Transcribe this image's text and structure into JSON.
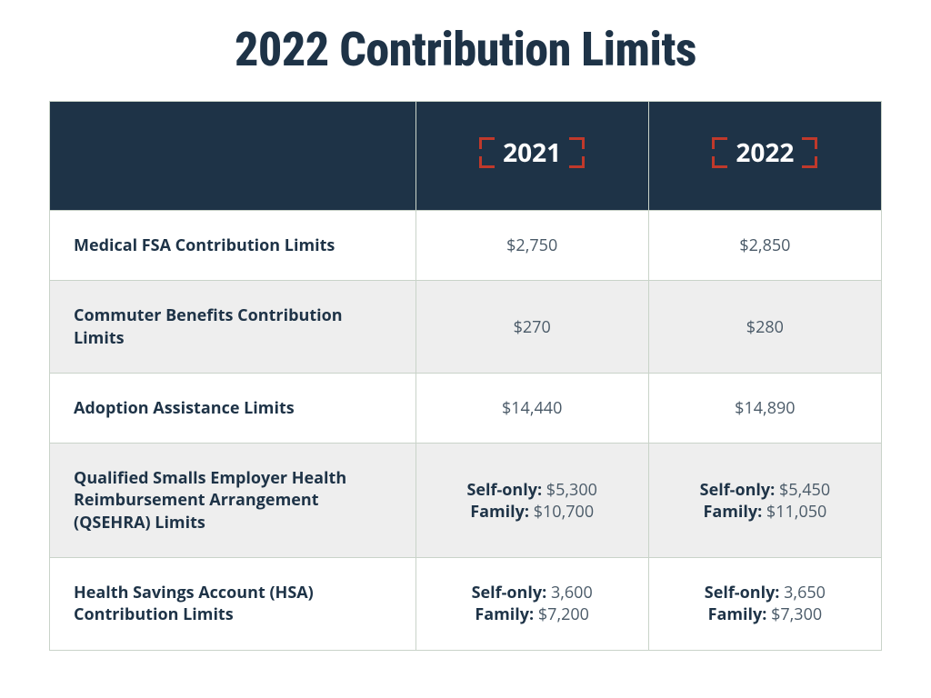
{
  "title": "2022 Contribution Limits",
  "colors": {
    "header_bg": "#1e3347",
    "header_text": "#ffffff",
    "bracket": "#c0392b",
    "row_alt_bg": "#eeeeee",
    "border": "#c9d3c9",
    "text_dark": "#1e3347",
    "text_muted": "#4a5a68",
    "page_bg": "#ffffff"
  },
  "typography": {
    "title_fontsize_pt": 39,
    "header_year_fontsize_pt": 21,
    "cell_fontsize_pt": 14,
    "title_weight": 800,
    "label_weight": 700
  },
  "columns": [
    "",
    "2021",
    "2022"
  ],
  "column_widths_pct": [
    44,
    28,
    28
  ],
  "rows": [
    {
      "label": "Medical FSA Contribution Limits",
      "y2021": "$2,750",
      "y2022": "$2,850"
    },
    {
      "label": "Commuter Benefits Contribution Limits",
      "y2021": "$270",
      "y2022": "$280"
    },
    {
      "label": "Adoption Assistance Limits",
      "y2021": "$14,440",
      "y2022": "$14,890"
    },
    {
      "label": "Qualified Smalls Employer Health Reimbursement Arrangement (QSEHRA) Limits",
      "y2021_self_label": "Self-only:",
      "y2021_self": "$5,300",
      "y2021_fam_label": "Family:",
      "y2021_fam": "$10,700",
      "y2022_self_label": "Self-only:",
      "y2022_self": "$5,450",
      "y2022_fam_label": "Family:",
      "y2022_fam": "$11,050"
    },
    {
      "label": "Health Savings Account (HSA) Contribution Limits",
      "y2021_self_label": "Self-only:",
      "y2021_self": "3,600",
      "y2021_fam_label": "Family:",
      "y2021_fam": "$7,200",
      "y2022_self_label": "Self-only:",
      "y2022_self": "3,650",
      "y2022_fam_label": "Family:",
      "y2022_fam": "$7,300"
    }
  ]
}
